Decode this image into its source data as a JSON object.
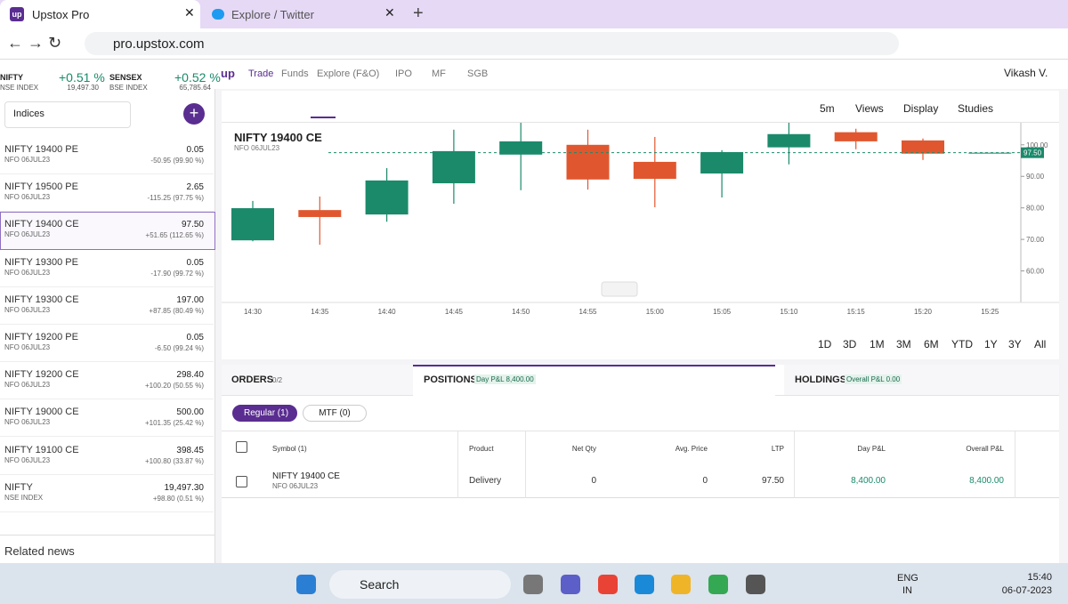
{
  "browser": {
    "tabs": [
      "Upstox Pro",
      "Explore / Twitter"
    ],
    "url": "pro.upstox.com"
  },
  "header": {
    "logo": "up",
    "indices": [
      {
        "name": "NIFTY",
        "change": "+0.51 %",
        "exchange": "NSE INDEX",
        "value": "19,497.30"
      },
      {
        "name": "SENSEX",
        "change": "+0.52 %",
        "exchange": "BSE INDEX",
        "value": "65,785.64"
      }
    ],
    "nav": [
      "Trade",
      "Funds",
      "Explore (F&O)",
      "IPO",
      "MF",
      "SGB"
    ],
    "user": "Vikash V."
  },
  "watchlist": {
    "dropdown": "Indices",
    "items": [
      {
        "name": "NIFTY 19400 PE",
        "sub": "NFO 06JUL23",
        "price": "0.05",
        "change": "-50.95 (99.90 %)"
      },
      {
        "name": "NIFTY 19500 PE",
        "sub": "NFO 06JUL23",
        "price": "2.65",
        "change": "-115.25 (97.75 %)"
      },
      {
        "name": "NIFTY 19400 CE",
        "sub": "NFO 06JUL23",
        "price": "97.50",
        "change": "+51.65 (112.65 %)"
      },
      {
        "name": "NIFTY 19300 PE",
        "sub": "NFO 06JUL23",
        "price": "0.05",
        "change": "-17.90 (99.72 %)"
      },
      {
        "name": "NIFTY 19300 CE",
        "sub": "NFO 06JUL23",
        "price": "197.00",
        "change": "+87.85 (80.49 %)"
      },
      {
        "name": "NIFTY 19200 PE",
        "sub": "NFO 06JUL23",
        "price": "0.05",
        "change": "-6.50 (99.24 %)"
      },
      {
        "name": "NIFTY 19200 CE",
        "sub": "NFO 06JUL23",
        "price": "298.40",
        "change": "+100.20 (50.55 %)"
      },
      {
        "name": "NIFTY 19000 CE",
        "sub": "NFO 06JUL23",
        "price": "500.00",
        "change": "+101.35 (25.42 %)"
      },
      {
        "name": "NIFTY 19100 CE",
        "sub": "NFO 06JUL23",
        "price": "398.45",
        "change": "+100.80 (33.87 %)"
      },
      {
        "name": "NIFTY",
        "sub": "NSE INDEX",
        "price": "19,497.30",
        "change": "+98.80 (0.51 %)"
      }
    ],
    "related_news": "Related news"
  },
  "chart": {
    "type": "candlestick",
    "interval": "5m",
    "menus": [
      "Views",
      "Display",
      "Studies"
    ],
    "title": "NIFTY 19400 CE",
    "subtitle": "NFO 06JUL23",
    "categories": [
      "14:30",
      "14:35",
      "14:40",
      "14:45",
      "14:50",
      "14:55",
      "15:00",
      "15:05",
      "15:10",
      "15:15",
      "15:20",
      "15:25"
    ],
    "open": [
      69.7,
      79.3,
      77.9,
      87.8,
      96.9,
      100.0,
      94.6,
      90.9,
      99.2,
      104.0,
      101.4,
      97.5
    ],
    "high": [
      82.2,
      83.6,
      92.6,
      104.8,
      107.0,
      104.8,
      102.5,
      98.3,
      107.0,
      105.1,
      102.0,
      97.5
    ],
    "low": [
      69.4,
      68.3,
      75.6,
      81.3,
      85.6,
      85.8,
      80.2,
      83.3,
      93.8,
      98.6,
      95.2,
      97.5
    ],
    "close": [
      79.9,
      77.1,
      88.7,
      98.0,
      101.1,
      89.0,
      89.2,
      97.7,
      103.4,
      101.1,
      97.2,
      97.5
    ],
    "up_color": "#1b8a6b",
    "down_color": "#e0572f",
    "ylim": [
      50,
      107
    ],
    "yticks": [
      {
        "value": 60,
        "label": "60.00"
      },
      {
        "value": 70,
        "label": "70.00"
      },
      {
        "value": 80,
        "label": "80.00"
      },
      {
        "value": 90,
        "label": "90.00"
      },
      {
        "value": 100,
        "label": "100.00"
      }
    ],
    "last_price": {
      "value": 97.5,
      "label": "97.50"
    },
    "ranges": [
      "1D",
      "3D",
      "1M",
      "3M",
      "6M",
      "YTD",
      "1Y",
      "3Y",
      "All"
    ]
  },
  "positions": {
    "orders": {
      "label": "ORDERS",
      "count": "0/2"
    },
    "positions": {
      "label": "POSITIONS",
      "badge": "Day P&L 8,400.00"
    },
    "holdings": {
      "label": "HOLDINGS",
      "badge": "Overall P&L 0.00"
    },
    "filters": [
      "Regular (1)",
      "MTF (0)"
    ],
    "table": {
      "headers": [
        "Symbol (1)",
        "Product",
        "Net Qty",
        "Avg. Price",
        "LTP",
        "Day P&L",
        "Overall P&L"
      ],
      "rows": [
        [
          {
            "name": "NIFTY 19400 CE",
            "sub": "NFO 06JUL23"
          },
          "Delivery",
          "0",
          "0",
          "97.50",
          "8,400.00",
          "8,400.00"
        ]
      ]
    }
  },
  "taskbar": {
    "search": "Search",
    "lang": "ENG",
    "region": "IN",
    "time": "15:40",
    "date": "06-07-2023"
  }
}
